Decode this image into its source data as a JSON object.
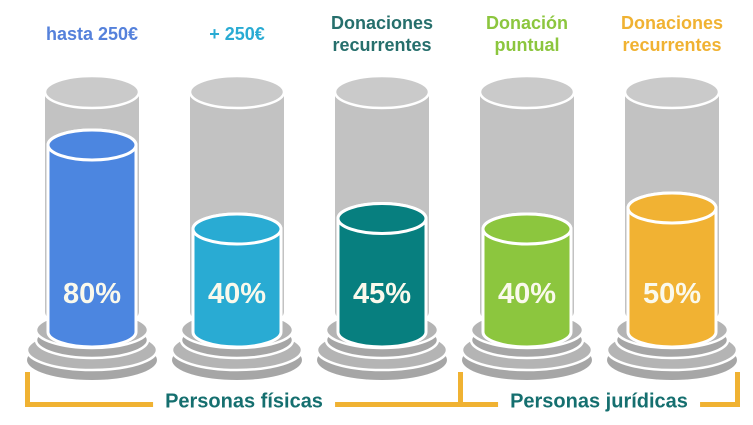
{
  "chart_data": {
    "type": "bar",
    "variant": "cylinder-gauge",
    "title": "",
    "categories": [
      "hasta 250€",
      "+ 250€",
      "Donaciones recurrentes",
      "Donación puntual",
      "Donaciones recurrentes"
    ],
    "values": [
      80,
      40,
      45,
      40,
      50
    ],
    "unit": "%",
    "ylim": [
      0,
      100
    ],
    "groups": [
      {
        "label": "Personas físicas",
        "columns": [
          0,
          1,
          2
        ]
      },
      {
        "label": "Personas jurídicas",
        "columns": [
          3,
          4
        ]
      }
    ]
  },
  "columns": [
    {
      "label": "hasta 250€",
      "value": 80,
      "value_label": "80%",
      "fill_color": "#4C86E0",
      "label_color": "#5581DB"
    },
    {
      "label": "+ 250€",
      "value": 40,
      "value_label": "40%",
      "fill_color": "#29ABD3",
      "label_color": "#29ABD3"
    },
    {
      "label": "Donaciones recurrentes",
      "value": 45,
      "value_label": "45%",
      "fill_color": "#077F7F",
      "label_color": "#266F6C"
    },
    {
      "label": "Donación puntual",
      "value": 40,
      "value_label": "40%",
      "fill_color": "#8CC63E",
      "label_color": "#8CC63E"
    },
    {
      "label": "Donaciones recurrentes",
      "value": 50,
      "value_label": "50%",
      "fill_color": "#F1B233",
      "label_color": "#F0B232"
    }
  ],
  "brackets": {
    "items": [
      {
        "label": "Personas físicas"
      },
      {
        "label": "Personas jurídicas"
      }
    ],
    "line_color": "#F0B232",
    "text_color": "#156F6F"
  },
  "style": {
    "container_body_color": "#C2C2C2",
    "container_top_color": "#CACACA",
    "base_top_color": "#B4B4B4",
    "base_side_color": "#A6A6A6",
    "outline_color": "#FFFFFF",
    "value_text_color": "#FAF9EC",
    "background_color": "#FFFFFF"
  }
}
